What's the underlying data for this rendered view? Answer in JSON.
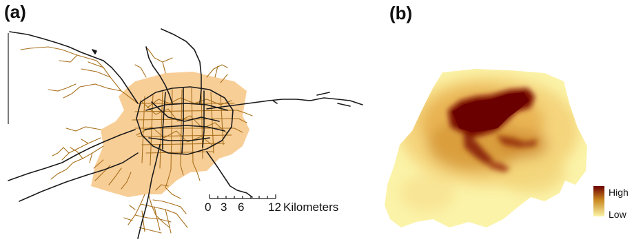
{
  "figure": {
    "panels": [
      {
        "label": "(a)"
      },
      {
        "label": "(b)"
      }
    ]
  },
  "scale_bar": {
    "ticks": [
      "0",
      "3",
      "6",
      "12"
    ],
    "unit": "Kilometers"
  },
  "legend": {
    "high_label": "High",
    "low_label": "Low",
    "colors": {
      "high": "#6b0000",
      "mid": "#c8861e",
      "low": "#fbf3a8"
    }
  },
  "colors": {
    "urban_area": "#f7c98c",
    "minor_roads": "#a8701c",
    "major_roads": "#1a1a1a"
  }
}
